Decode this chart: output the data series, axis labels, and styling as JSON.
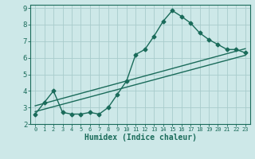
{
  "xlabel": "Humidex (Indice chaleur)",
  "ylabel": "",
  "xlim": [
    -0.5,
    23.5
  ],
  "ylim": [
    2,
    9.2
  ],
  "yticks": [
    2,
    3,
    4,
    5,
    6,
    7,
    8,
    9
  ],
  "xticks": [
    0,
    1,
    2,
    3,
    4,
    5,
    6,
    7,
    8,
    9,
    10,
    11,
    12,
    13,
    14,
    15,
    16,
    17,
    18,
    19,
    20,
    21,
    22,
    23
  ],
  "bg_color": "#cde8e8",
  "grid_color": "#a8cccc",
  "line_color": "#1a6b5a",
  "line1_x": [
    0,
    1,
    2,
    3,
    4,
    5,
    6,
    7,
    8,
    9,
    10,
    11,
    12,
    13,
    14,
    15,
    16,
    17,
    18,
    19,
    20,
    21,
    22,
    23
  ],
  "line1_y": [
    2.6,
    3.3,
    4.0,
    2.7,
    2.6,
    2.6,
    2.7,
    2.6,
    3.0,
    3.8,
    4.6,
    6.2,
    6.5,
    7.3,
    8.2,
    8.85,
    8.5,
    8.1,
    7.5,
    7.1,
    6.8,
    6.5,
    6.5,
    6.3
  ],
  "line2_x": [
    0,
    23
  ],
  "line2_y": [
    3.1,
    6.55
  ],
  "line3_x": [
    0,
    23
  ],
  "line3_y": [
    2.75,
    6.15
  ],
  "marker": "D",
  "markersize": 2.5,
  "linewidth": 1.0
}
